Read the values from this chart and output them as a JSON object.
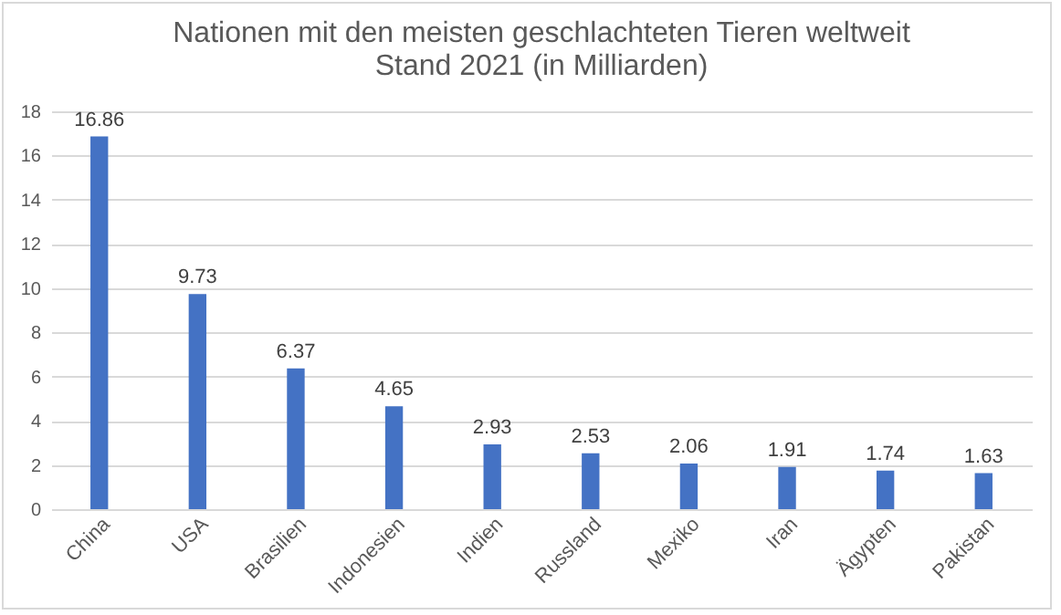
{
  "chart_data": {
    "type": "bar",
    "title": "Nationen mit den meisten geschlachteten Tieren weltweit",
    "subtitle": "Stand 2021 (in Milliarden)",
    "categories": [
      "China",
      "USA",
      "Brasilien",
      "Indonesien",
      "Indien",
      "Russland",
      "Mexiko",
      "Iran",
      "Ägypten",
      "Pakistan"
    ],
    "values": [
      16.86,
      9.73,
      6.37,
      4.65,
      2.93,
      2.53,
      2.06,
      1.91,
      1.74,
      1.63
    ],
    "color": "#4472c4",
    "ylim": [
      0,
      18
    ],
    "yticks": [
      0,
      2,
      4,
      6,
      8,
      10,
      12,
      14,
      16,
      18
    ],
    "grid": "y",
    "data_labels": true
  }
}
